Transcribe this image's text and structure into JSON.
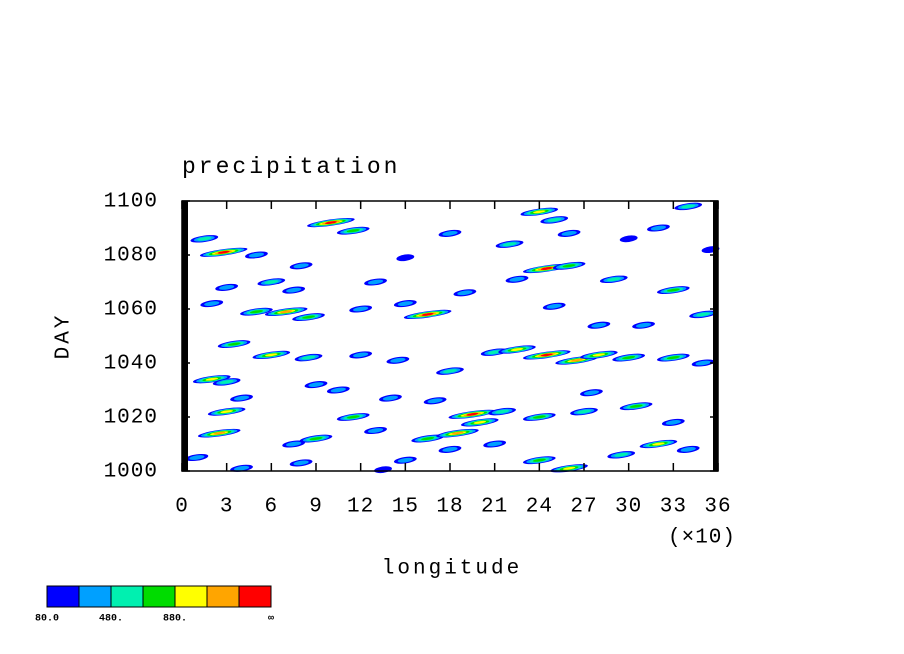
{
  "chart_data": {
    "type": "hovmoller",
    "title": "precipitation",
    "xlabel": "longitude",
    "xscale_label": "(×10)",
    "ylabel": "DAY",
    "xlim": [
      0,
      36
    ],
    "xticks": [
      0,
      3,
      6,
      9,
      12,
      15,
      18,
      21,
      24,
      27,
      30,
      33,
      36
    ],
    "ylim": [
      1000,
      1100
    ],
    "yticks": [
      1000,
      1020,
      1040,
      1060,
      1080,
      1100
    ],
    "colorbar": {
      "levels": [
        80,
        280,
        480,
        680,
        880,
        1080,
        1280
      ],
      "colors": [
        "#0000ff",
        "#00a0ff",
        "#00f0b0",
        "#00dc00",
        "#ffff00",
        "#ffa500",
        "#ff0000"
      ],
      "labels": [
        "80.0",
        "480.",
        "880.",
        "∞"
      ]
    },
    "x": [
      1.5,
      2.8,
      5,
      8,
      10,
      11.5,
      13,
      15,
      18,
      22,
      24,
      25,
      26,
      30,
      32,
      34,
      35.5,
      3,
      6,
      7.5,
      2,
      5,
      7,
      8.5,
      12,
      16.5,
      15,
      19,
      22.5,
      24.5,
      26,
      29,
      33,
      35,
      25,
      28,
      31,
      3.5,
      6,
      8.5,
      12,
      14.5,
      18,
      21,
      22.5,
      24.5,
      26.5,
      28,
      30,
      33,
      35,
      2,
      3,
      9,
      14,
      17,
      19.5,
      21.5,
      20,
      11.5,
      3,
      2.5,
      7.5,
      9,
      13,
      16.5,
      18.5,
      24,
      27,
      30.5,
      33,
      32,
      34,
      29.5,
      24,
      26,
      15,
      8,
      4,
      18,
      1,
      13.5,
      21,
      10.5,
      4,
      27.5
    ],
    "y": [
      1086,
      1081,
      1080,
      1076,
      1092,
      1089,
      1070,
      1079,
      1088,
      1084,
      1096,
      1093,
      1088,
      1086,
      1090,
      1098,
      1082,
      1068,
      1070,
      1067,
      1062,
      1059,
      1059,
      1057,
      1060,
      1058,
      1062,
      1066,
      1071,
      1075,
      1076,
      1071,
      1067,
      1058,
      1061,
      1054,
      1054,
      1047,
      1043,
      1042,
      1043,
      1041,
      1037,
      1044,
      1045,
      1043,
      1041,
      1043,
      1042,
      1042,
      1040,
      1034,
      1033,
      1032,
      1027,
      1026,
      1021,
      1022,
      1018,
      1020,
      1022,
      1014,
      1010,
      1012,
      1015,
      1012,
      1014,
      1020,
      1022,
      1024,
      1018,
      1010,
      1008,
      1006,
      1004,
      1001,
      1004,
      1003,
      1001,
      1008,
      1005,
      1000.5,
      1010,
      1030,
      1027,
      1029
    ],
    "values": [
      500,
      1400,
      300,
      300,
      1400,
      700,
      300,
      200,
      300,
      500,
      900,
      600,
      300,
      200,
      300,
      600,
      200,
      300,
      500,
      300,
      300,
      700,
      1100,
      700,
      300,
      1400,
      300,
      300,
      400,
      1400,
      700,
      500,
      700,
      500,
      300,
      300,
      400,
      800,
      1000,
      600,
      400,
      300,
      500,
      500,
      1000,
      1400,
      1200,
      900,
      700,
      800,
      300,
      900,
      500,
      300,
      300,
      300,
      1400,
      600,
      900,
      700,
      1000,
      1100,
      300,
      800,
      300,
      700,
      1200,
      800,
      600,
      700,
      400,
      900,
      300,
      500,
      700,
      900,
      400,
      300,
      300,
      300,
      300,
      200,
      400,
      400,
      300,
      300
    ]
  }
}
